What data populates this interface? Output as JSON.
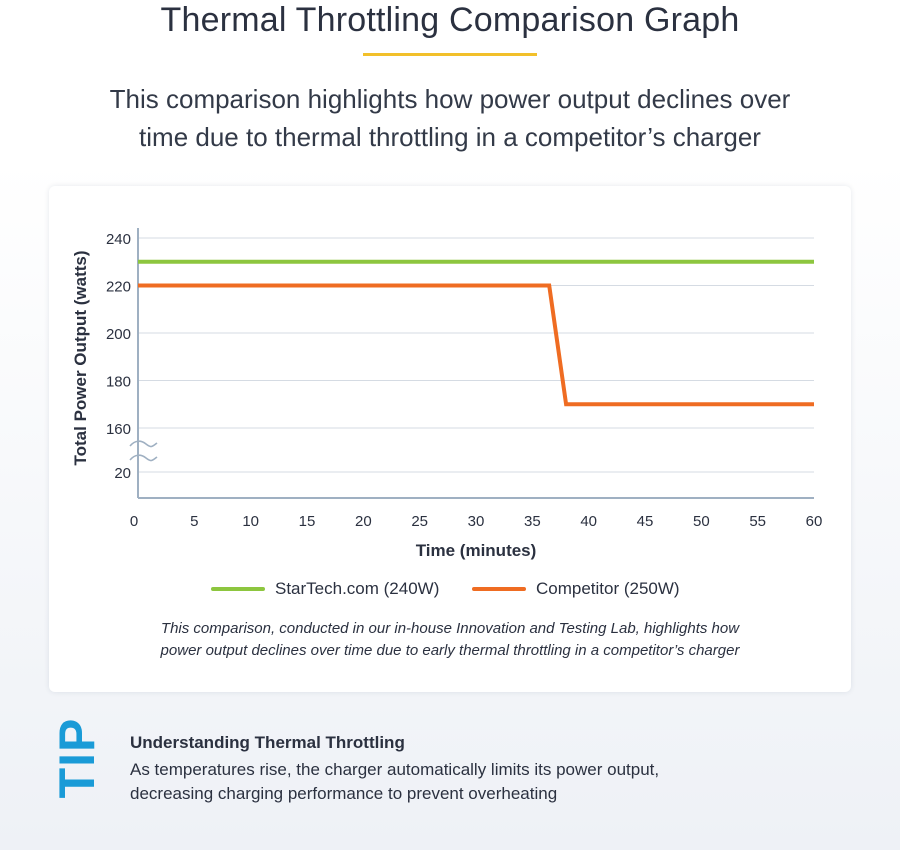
{
  "header": {
    "title": "Thermal Throttling Comparison Graph",
    "subtitle_lines": [
      "This comparison highlights how power output declines over",
      "time due to thermal throttling in a competitor’s charger"
    ],
    "accent_color": "#f2c02a"
  },
  "chart_data": {
    "type": "line",
    "xlabel": "Time (minutes)",
    "ylabel": "Total Power Output (watts)",
    "xlim": [
      0,
      60
    ],
    "x_ticks": [
      0,
      5,
      10,
      15,
      20,
      25,
      30,
      35,
      40,
      45,
      50,
      55,
      60
    ],
    "y_ticks": [
      20,
      160,
      180,
      200,
      220,
      240
    ],
    "y_axis_break": "between 20 and 160",
    "grid": "horizontal",
    "legend_position": "bottom",
    "series": [
      {
        "name": "StarTech.com (240W)",
        "color": "#8dc63f",
        "x": [
          0,
          60
        ],
        "y": [
          230,
          230
        ]
      },
      {
        "name": "Competitor (250W)",
        "color": "#ef6c22",
        "x": [
          0,
          36.5,
          38,
          60
        ],
        "y": [
          220,
          220,
          170,
          170
        ]
      }
    ]
  },
  "footnote_lines": [
    "This comparison, conducted in our in-house Innovation and Testing Lab, highlights how",
    "power output declines over time due to early thermal throttling in a competitor’s charger"
  ],
  "tip": {
    "badge": "TIP",
    "badge_color": "#1a9bd7",
    "heading": "Understanding Thermal Throttling",
    "body_lines": [
      "As temperatures rise, the charger automatically limits its power output,",
      "decreasing charging performance to prevent overheating"
    ]
  }
}
